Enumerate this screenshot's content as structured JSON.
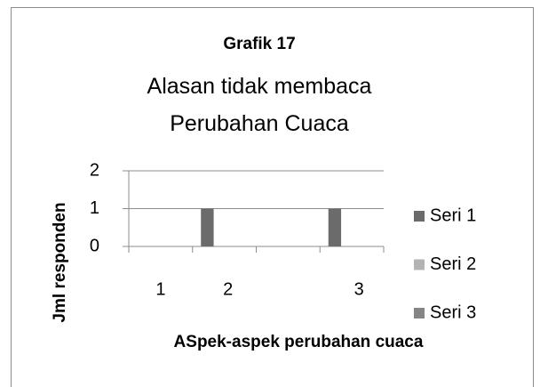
{
  "chart_data": {
    "type": "bar",
    "title": "Grafik 17",
    "subtitle": "Alasan tidak membaca Perubahan Cuaca",
    "xlabel": "ASpek-aspek perubahan cuaca",
    "ylabel": "Jml responden",
    "categories": [
      "1",
      "2",
      null,
      "3"
    ],
    "series": [
      {
        "name": "Seri 1",
        "color": "#6b6b6b",
        "values": [
          0,
          1,
          0,
          1
        ]
      },
      {
        "name": "Seri 2",
        "color": "#b3b3b3",
        "values": [
          0,
          0,
          0,
          0
        ]
      },
      {
        "name": "Seri 3",
        "color": "#858585",
        "values": [
          0,
          0,
          0,
          0
        ]
      }
    ],
    "ylim": [
      0,
      2
    ],
    "yticks": [
      0,
      1,
      2
    ],
    "grid": true,
    "legend": "right"
  }
}
